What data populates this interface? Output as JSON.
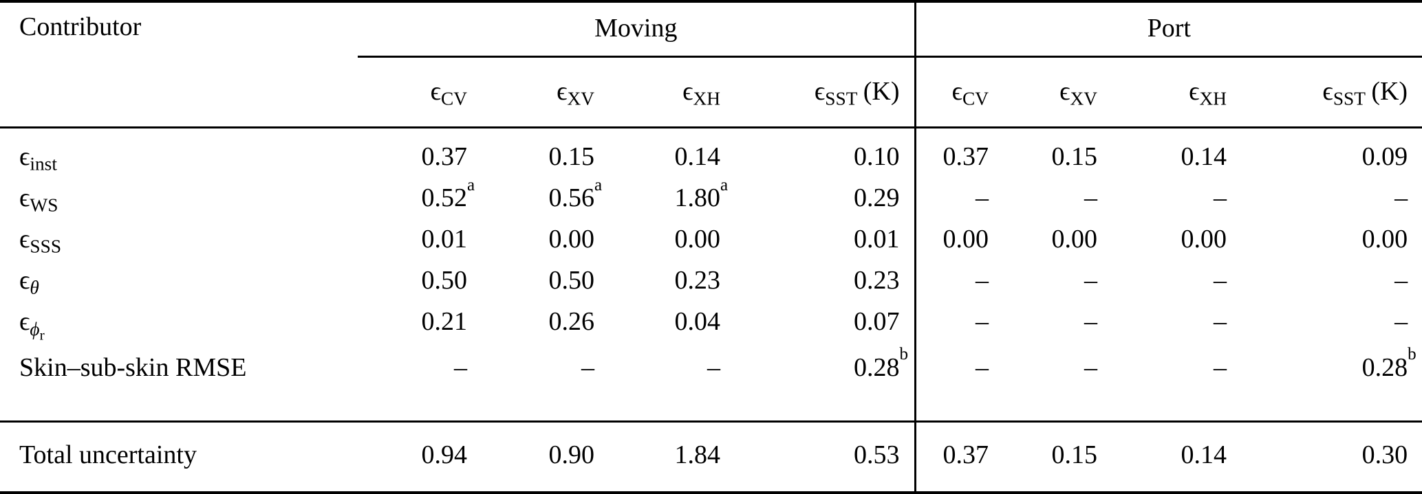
{
  "page": {
    "background": "#ffffff",
    "text_color": "#000000"
  },
  "table": {
    "contributor_header": "Contributor",
    "groups": [
      {
        "label": "Moving"
      },
      {
        "label": "Port"
      }
    ],
    "subheaders": [
      {
        "base": "ϵ",
        "sub": "CV"
      },
      {
        "base": "ϵ",
        "sub": "XV"
      },
      {
        "base": "ϵ",
        "sub": "XH"
      },
      {
        "base": "ϵ",
        "sub": "SST",
        "unit": "(K)"
      },
      {
        "base": "ϵ",
        "sub": "CV"
      },
      {
        "base": "ϵ",
        "sub": "XV"
      },
      {
        "base": "ϵ",
        "sub": "XH"
      },
      {
        "base": "ϵ",
        "sub": "SST",
        "unit": "(K)"
      }
    ],
    "rows": [
      {
        "label": {
          "base": "ϵ",
          "sub": "inst"
        },
        "cells": [
          {
            "v": "0.37"
          },
          {
            "v": "0.15"
          },
          {
            "v": "0.14"
          },
          {
            "v": "0.10"
          },
          {
            "v": "0.37"
          },
          {
            "v": "0.15"
          },
          {
            "v": "0.14"
          },
          {
            "v": "0.09"
          }
        ]
      },
      {
        "label": {
          "base": "ϵ",
          "sub": "WS"
        },
        "cells": [
          {
            "v": "0.52",
            "sup": "a"
          },
          {
            "v": "0.56",
            "sup": "a"
          },
          {
            "v": "1.80",
            "sup": "a"
          },
          {
            "v": "0.29"
          },
          {
            "v": "–"
          },
          {
            "v": "–"
          },
          {
            "v": "–"
          },
          {
            "v": "–"
          }
        ]
      },
      {
        "label": {
          "base": "ϵ",
          "sub": "SSS"
        },
        "cells": [
          {
            "v": "0.01"
          },
          {
            "v": "0.00"
          },
          {
            "v": "0.00"
          },
          {
            "v": "0.01"
          },
          {
            "v": "0.00"
          },
          {
            "v": "0.00"
          },
          {
            "v": "0.00"
          },
          {
            "v": "0.00"
          }
        ]
      },
      {
        "label": {
          "base": "ϵ",
          "sub": "θ",
          "italic": true
        },
        "cells": [
          {
            "v": "0.50"
          },
          {
            "v": "0.50"
          },
          {
            "v": "0.23"
          },
          {
            "v": "0.23"
          },
          {
            "v": "–"
          },
          {
            "v": "–"
          },
          {
            "v": "–"
          },
          {
            "v": "–"
          }
        ]
      },
      {
        "label": {
          "base": "ϵ",
          "sub": "ϕ",
          "subsub": "r",
          "italic": true
        },
        "cells": [
          {
            "v": "0.21"
          },
          {
            "v": "0.26"
          },
          {
            "v": "0.04"
          },
          {
            "v": "0.07"
          },
          {
            "v": "–"
          },
          {
            "v": "–"
          },
          {
            "v": "–"
          },
          {
            "v": "–"
          }
        ]
      },
      {
        "label": {
          "text": "Skin–sub-skin RMSE"
        },
        "cells": [
          {
            "v": "–"
          },
          {
            "v": "–"
          },
          {
            "v": "–"
          },
          {
            "v": "0.28",
            "sup": "b"
          },
          {
            "v": "–"
          },
          {
            "v": "–"
          },
          {
            "v": "–"
          },
          {
            "v": "0.28",
            "sup": "b"
          }
        ]
      }
    ],
    "total_row": {
      "label": {
        "text": "Total uncertainty"
      },
      "cells": [
        {
          "v": "0.94"
        },
        {
          "v": "0.90"
        },
        {
          "v": "1.84"
        },
        {
          "v": "0.53"
        },
        {
          "v": "0.37"
        },
        {
          "v": "0.15"
        },
        {
          "v": "0.14"
        },
        {
          "v": "0.30"
        }
      ]
    }
  }
}
